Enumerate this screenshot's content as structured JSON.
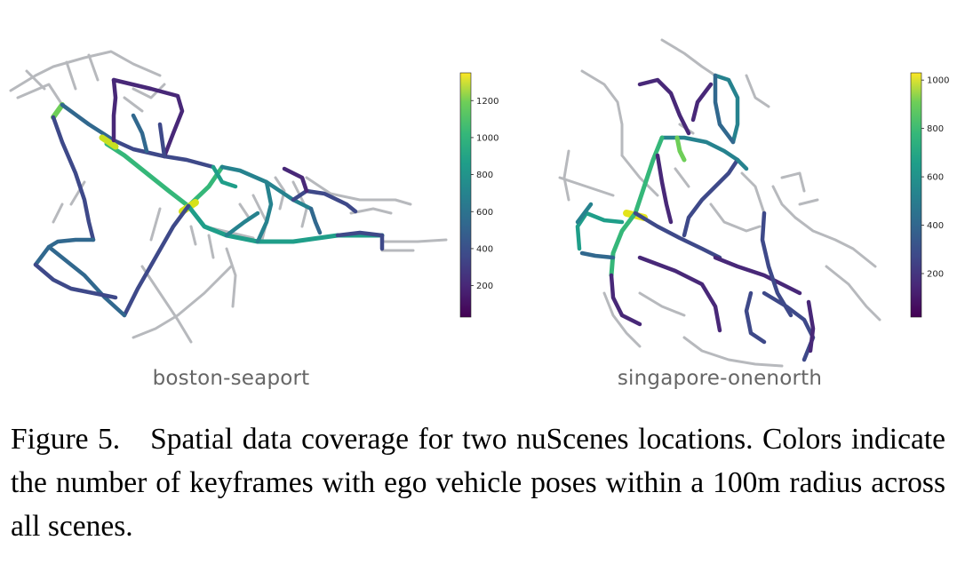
{
  "figure": {
    "panels": [
      {
        "name": "boston-seaport",
        "colorbar": {
          "ticks": [
            200,
            400,
            600,
            800,
            1000,
            1200
          ],
          "min": 30,
          "max": 1350
        }
      },
      {
        "name": "singapore-onenorth",
        "colorbar": {
          "ticks": [
            200,
            400,
            600,
            800,
            1000
          ],
          "min": 20,
          "max": 1030
        }
      }
    ],
    "colormap": "viridis",
    "unmapped_road_color": "#b7b9bd"
  },
  "caption": {
    "label": "Figure 5.",
    "text": "Spatial data coverage for two nuScenes locations. Colors indicate the number of keyframes with ego vehicle poses within a 100m radius across all scenes."
  }
}
